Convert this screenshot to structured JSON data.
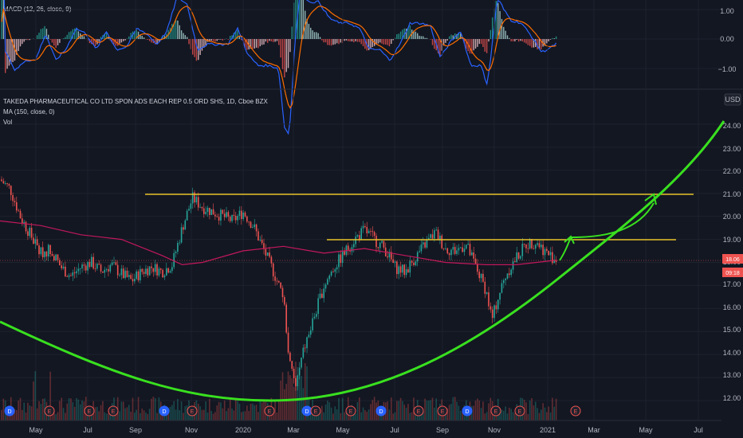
{
  "chart_data": {
    "type": "candlestick",
    "macd_panel": {
      "legend": "MACD (12, 26, close, 9)",
      "y_ticks": [
        "1.00",
        "0.00",
        "−1.00"
      ],
      "ylim": [
        -1.6,
        1.5
      ]
    },
    "price_panel": {
      "title": "TAKEDA PHARMACEUTICAL CO LTD SPON ADS EACH REP 0.5 ORD SHS, 1D, Cboe BZX",
      "legend_ma": "MA (150, close, 0)",
      "legend_vol": "Vol",
      "currency": "USD",
      "y_ticks": [
        "24.00",
        "23.00",
        "22.00",
        "21.00",
        "20.00",
        "19.00",
        "18.00",
        "17.00",
        "16.00",
        "15.00",
        "14.00",
        "13.00",
        "12.00"
      ],
      "ylim": [
        11.3,
        24.9
      ],
      "price_badge_1": "18.06",
      "price_badge_2": "09:18",
      "x_ticks": [
        "May",
        "Jul",
        "Sep",
        "Nov",
        "2020",
        "Mar",
        "May",
        "Jul",
        "Sep",
        "Nov",
        "2021",
        "Mar",
        "May",
        "Jul"
      ],
      "event_markers": [
        "D",
        "E",
        "E",
        "E",
        "D",
        "E",
        "E",
        "D",
        "E",
        "E",
        "D",
        "E",
        "E",
        "D",
        "E",
        "E",
        "E"
      ],
      "resistance_levels": [
        21.0,
        19.0
      ],
      "price_series": [
        {
          "t": 0.0,
          "v": 21.6
        },
        {
          "t": 0.5,
          "v": 21.2
        },
        {
          "t": 1.0,
          "v": 20.0
        },
        {
          "t": 1.5,
          "v": 19.2
        },
        {
          "t": 2.0,
          "v": 18.4
        },
        {
          "t": 2.5,
          "v": 18.6
        },
        {
          "t": 3.0,
          "v": 17.8
        },
        {
          "t": 3.5,
          "v": 17.4
        },
        {
          "t": 4.0,
          "v": 17.8
        },
        {
          "t": 4.5,
          "v": 18.0
        },
        {
          "t": 5.0,
          "v": 17.6
        },
        {
          "t": 5.5,
          "v": 17.9
        },
        {
          "t": 6.0,
          "v": 17.5
        },
        {
          "t": 6.5,
          "v": 17.2
        },
        {
          "t": 7.0,
          "v": 17.6
        },
        {
          "t": 7.5,
          "v": 17.8
        },
        {
          "t": 8.0,
          "v": 17.6
        },
        {
          "t": 8.5,
          "v": 17.9
        },
        {
          "t": 9.0,
          "v": 19.5
        },
        {
          "t": 9.5,
          "v": 20.8
        },
        {
          "t": 10.0,
          "v": 20.4
        },
        {
          "t": 10.5,
          "v": 20.2
        },
        {
          "t": 11.0,
          "v": 20.0
        },
        {
          "t": 11.5,
          "v": 19.8
        },
        {
          "t": 12.0,
          "v": 20.2
        },
        {
          "t": 12.5,
          "v": 19.6
        },
        {
          "t": 13.0,
          "v": 18.6
        },
        {
          "t": 13.5,
          "v": 17.6
        },
        {
          "t": 14.0,
          "v": 16.5
        },
        {
          "t": 14.3,
          "v": 13.6
        },
        {
          "t": 14.6,
          "v": 12.6
        },
        {
          "t": 15.0,
          "v": 14.2
        },
        {
          "t": 15.5,
          "v": 15.6
        },
        {
          "t": 16.0,
          "v": 17.0
        },
        {
          "t": 16.5,
          "v": 17.8
        },
        {
          "t": 17.0,
          "v": 18.4
        },
        {
          "t": 17.5,
          "v": 19.0
        },
        {
          "t": 18.0,
          "v": 19.4
        },
        {
          "t": 18.5,
          "v": 19.0
        },
        {
          "t": 19.0,
          "v": 18.6
        },
        {
          "t": 19.5,
          "v": 17.8
        },
        {
          "t": 20.0,
          "v": 17.6
        },
        {
          "t": 20.5,
          "v": 18.2
        },
        {
          "t": 21.0,
          "v": 18.8
        },
        {
          "t": 21.5,
          "v": 19.3
        },
        {
          "t": 22.0,
          "v": 18.6
        },
        {
          "t": 22.5,
          "v": 18.5
        },
        {
          "t": 23.0,
          "v": 18.8
        },
        {
          "t": 23.5,
          "v": 17.8
        },
        {
          "t": 24.0,
          "v": 16.8
        },
        {
          "t": 24.3,
          "v": 15.5
        },
        {
          "t": 24.6,
          "v": 16.5
        },
        {
          "t": 25.0,
          "v": 17.5
        },
        {
          "t": 25.5,
          "v": 18.2
        },
        {
          "t": 26.0,
          "v": 18.8
        },
        {
          "t": 26.5,
          "v": 18.9
        },
        {
          "t": 27.0,
          "v": 18.4
        },
        {
          "t": 27.5,
          "v": 18.1
        }
      ],
      "ma_series": [
        {
          "t": 0.0,
          "v": 19.8
        },
        {
          "t": 2.0,
          "v": 19.6
        },
        {
          "t": 4.0,
          "v": 19.2
        },
        {
          "t": 6.0,
          "v": 19.0
        },
        {
          "t": 8.0,
          "v": 18.3
        },
        {
          "t": 9.0,
          "v": 17.9
        },
        {
          "t": 10.0,
          "v": 18.0
        },
        {
          "t": 12.0,
          "v": 18.5
        },
        {
          "t": 14.0,
          "v": 18.7
        },
        {
          "t": 16.0,
          "v": 18.4
        },
        {
          "t": 18.0,
          "v": 18.6
        },
        {
          "t": 20.0,
          "v": 18.3
        },
        {
          "t": 22.0,
          "v": 18.0
        },
        {
          "t": 24.0,
          "v": 17.9
        },
        {
          "t": 25.5,
          "v": 17.9
        },
        {
          "t": 27.5,
          "v": 18.1
        }
      ]
    }
  }
}
